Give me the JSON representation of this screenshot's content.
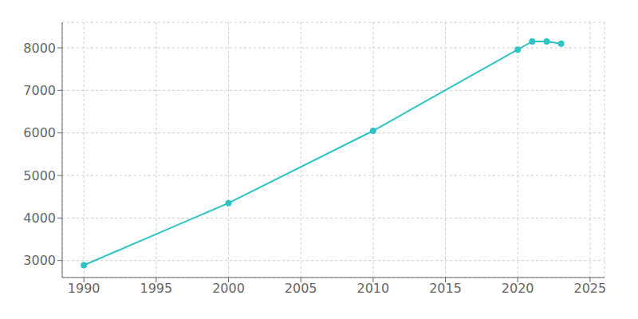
{
  "chart_data": {
    "type": "line",
    "x": [
      1990,
      2000,
      2010,
      2020,
      2021,
      2022,
      2023
    ],
    "values": [
      2890,
      4350,
      6050,
      7960,
      8150,
      8150,
      8100
    ],
    "color": "#2EC4C4",
    "marker": "circle",
    "xlim": [
      1988.5,
      2026
    ],
    "ylim": [
      2600,
      8600
    ],
    "xticks": [
      1990,
      1995,
      2000,
      2005,
      2010,
      2015,
      2020,
      2025
    ],
    "yticks": [
      3000,
      4000,
      5000,
      6000,
      7000,
      8000
    ],
    "grid": true
  }
}
